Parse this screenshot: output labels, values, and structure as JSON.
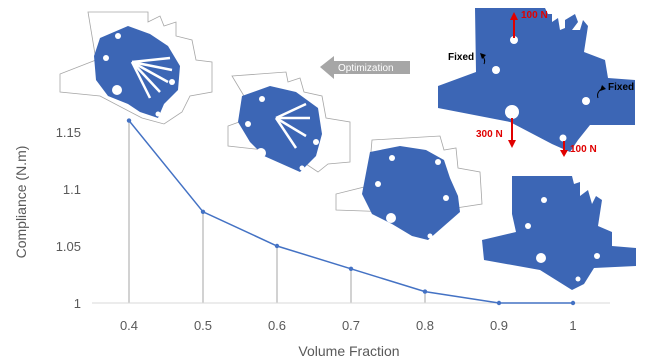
{
  "chart_data": {
    "type": "line",
    "title": "",
    "xlabel": "Volume Fraction",
    "ylabel": "Compliance (N.m)",
    "x": [
      0.4,
      0.5,
      0.6,
      0.7,
      0.8,
      0.9,
      1.0
    ],
    "x_tick_labels": [
      "0.4",
      "0.5",
      "0.6",
      "0.7",
      "0.8",
      "0.9",
      "1"
    ],
    "y_ticks": [
      1,
      1.05,
      1.1,
      1.15
    ],
    "y_tick_labels": [
      "1",
      "1.05",
      "1.1",
      "1.15"
    ],
    "series": [
      {
        "values": [
          1.16,
          1.08,
          1.05,
          1.03,
          1.01,
          1.0,
          1.0
        ]
      }
    ],
    "xlim": [
      0.35,
      1.05
    ],
    "ylim": [
      1.0,
      1.2
    ],
    "grid": false,
    "color": "#4472c4",
    "drop_lines_at": [
      0.4,
      0.5,
      0.6,
      0.7,
      0.8,
      0.9,
      1.0
    ]
  },
  "annotations": {
    "optimization_label": "Optimization",
    "fixed_left": "Fixed",
    "fixed_right": "Fixed",
    "load_top": "100 N",
    "load_bottom_left": "300 N",
    "load_bottom_right": "100 N",
    "shape_color": "#3c66b5",
    "load_color": "#e00000",
    "arrow_color": "#a6a6a6"
  }
}
